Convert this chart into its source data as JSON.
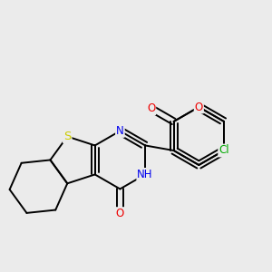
{
  "background_color": "#ebebeb",
  "atom_colors": {
    "S": "#cccc00",
    "N": "#0000ee",
    "O": "#ee0000",
    "Cl": "#00aa00",
    "H": "#00aaaa",
    "C": "#000000"
  },
  "bond_color": "#000000",
  "bond_width": 1.4,
  "font_size": 8.5,
  "figsize": [
    3.0,
    3.0
  ],
  "dpi": 100
}
